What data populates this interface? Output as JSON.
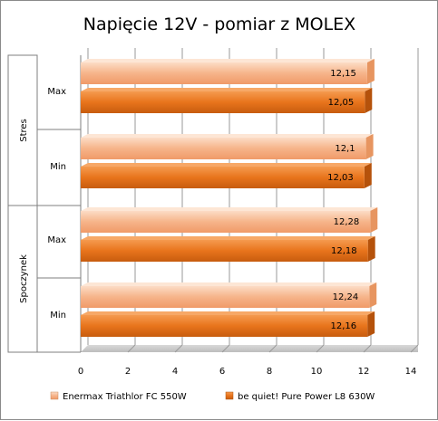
{
  "chart_data": {
    "type": "bar",
    "orientation": "horizontal",
    "title": "Napięcie 12V - pomiar z MOLEX",
    "groups": [
      {
        "name": "Stres",
        "categories": [
          "Max",
          "Min"
        ]
      },
      {
        "name": "Spoczynek",
        "categories": [
          "Max",
          "Min"
        ]
      }
    ],
    "series": [
      {
        "name": "Enermax Triathlor FC 550W",
        "color": "#F6B48A",
        "labels": [
          "12,15",
          "12,1",
          "12,28",
          "12,24"
        ],
        "values": [
          12.15,
          12.1,
          12.28,
          12.24
        ]
      },
      {
        "name": "be quiet! Pure Power L8 630W",
        "color": "#E8741C",
        "labels": [
          "12,05",
          "12,03",
          "12,18",
          "12,16"
        ],
        "values": [
          12.05,
          12.03,
          12.18,
          12.16
        ]
      }
    ],
    "xlim": [
      0,
      14
    ],
    "xticks": [
      "0",
      "2",
      "4",
      "6",
      "8",
      "10",
      "12",
      "14"
    ],
    "legend": "bottom",
    "grid": true
  }
}
